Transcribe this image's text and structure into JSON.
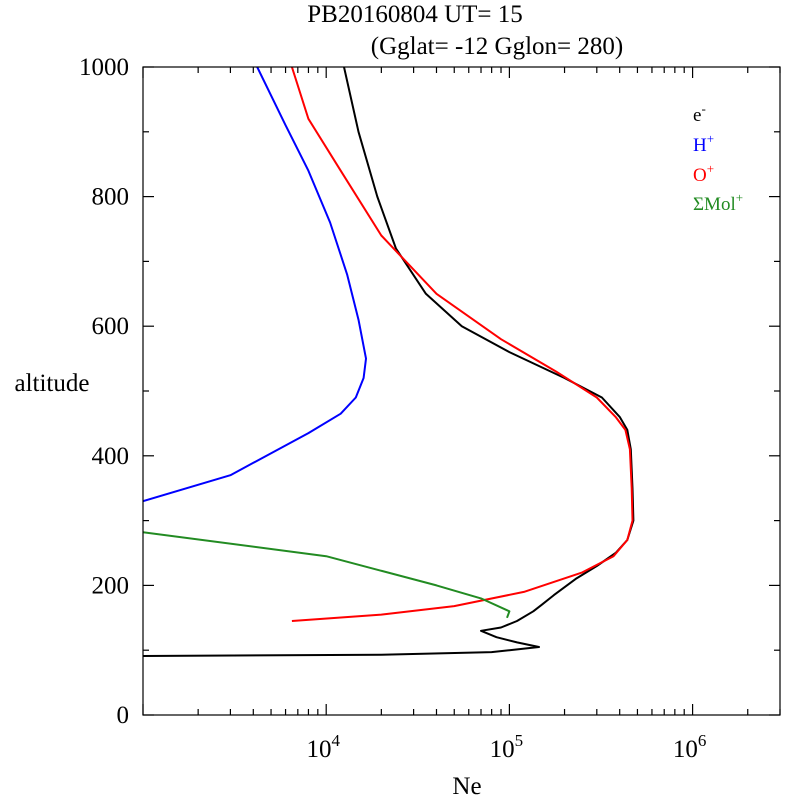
{
  "chart_data": {
    "type": "line",
    "title_line1": "PB20160804   UT=  15",
    "title_line2": "(Gglat= -12   Gglon=  280)",
    "xlabel": "Ne",
    "ylabel": "altitude",
    "x_scale": "log",
    "xlim": [
      1000,
      3000000
    ],
    "ylim": [
      0,
      1000
    ],
    "x_ticks": [
      {
        "value": 10000,
        "base": "10",
        "exp": "4"
      },
      {
        "value": 100000,
        "base": "10",
        "exp": "5"
      },
      {
        "value": 1000000,
        "base": "10",
        "exp": "6"
      }
    ],
    "y_ticks": [
      {
        "value": 0,
        "label": "0"
      },
      {
        "value": 200,
        "label": "200"
      },
      {
        "value": 400,
        "label": "400"
      },
      {
        "value": 600,
        "label": "600"
      },
      {
        "value": 800,
        "label": "800"
      },
      {
        "value": 1000,
        "label": "1000"
      }
    ],
    "grid": false,
    "legend_position": "top-right",
    "series": [
      {
        "name": "e",
        "sup": "-",
        "color": "#000000",
        "points": [
          [
            1000,
            91
          ],
          [
            20000,
            93
          ],
          [
            80000,
            97
          ],
          [
            100000,
            100
          ],
          [
            145000,
            105
          ],
          [
            110000,
            112
          ],
          [
            85000,
            120
          ],
          [
            70000,
            130
          ],
          [
            90000,
            135
          ],
          [
            110000,
            145
          ],
          [
            135000,
            160
          ],
          [
            150000,
            170
          ],
          [
            175000,
            185
          ],
          [
            230000,
            210
          ],
          [
            300000,
            230
          ],
          [
            380000,
            250
          ],
          [
            440000,
            270
          ],
          [
            475000,
            300
          ],
          [
            470000,
            350
          ],
          [
            460000,
            410
          ],
          [
            440000,
            440
          ],
          [
            400000,
            460
          ],
          [
            320000,
            490
          ],
          [
            200000,
            520
          ],
          [
            100000,
            560
          ],
          [
            55000,
            600
          ],
          [
            35000,
            650
          ],
          [
            24000,
            720
          ],
          [
            19000,
            800
          ],
          [
            15000,
            900
          ],
          [
            12500,
            1000
          ]
        ]
      },
      {
        "name": "H",
        "sup": "+",
        "color": "#0000ff",
        "points": [
          [
            1000,
            330
          ],
          [
            3000,
            370
          ],
          [
            8000,
            435
          ],
          [
            12000,
            465
          ],
          [
            14500,
            490
          ],
          [
            16000,
            520
          ],
          [
            16500,
            550
          ],
          [
            15000,
            610
          ],
          [
            13000,
            680
          ],
          [
            10500,
            760
          ],
          [
            8000,
            840
          ],
          [
            6000,
            910
          ],
          [
            4200,
            1000
          ]
        ]
      },
      {
        "name": "O",
        "sup": "+",
        "color": "#ff0000",
        "points": [
          [
            6500,
            145
          ],
          [
            20000,
            155
          ],
          [
            50000,
            168
          ],
          [
            120000,
            190
          ],
          [
            250000,
            220
          ],
          [
            370000,
            245
          ],
          [
            440000,
            270
          ],
          [
            470000,
            300
          ],
          [
            465000,
            350
          ],
          [
            455000,
            410
          ],
          [
            430000,
            440
          ],
          [
            380000,
            460
          ],
          [
            300000,
            490
          ],
          [
            180000,
            530
          ],
          [
            90000,
            580
          ],
          [
            40000,
            650
          ],
          [
            20000,
            740
          ],
          [
            12000,
            840
          ],
          [
            8000,
            920
          ],
          [
            6500,
            1000
          ]
        ]
      },
      {
        "name": "ΣMol",
        "sup": "+",
        "color": "#228b22",
        "points": [
          [
            1000,
            282
          ],
          [
            10000,
            245
          ],
          [
            40000,
            200
          ],
          [
            70000,
            180
          ],
          [
            100000,
            160
          ],
          [
            97000,
            150
          ]
        ]
      }
    ]
  }
}
